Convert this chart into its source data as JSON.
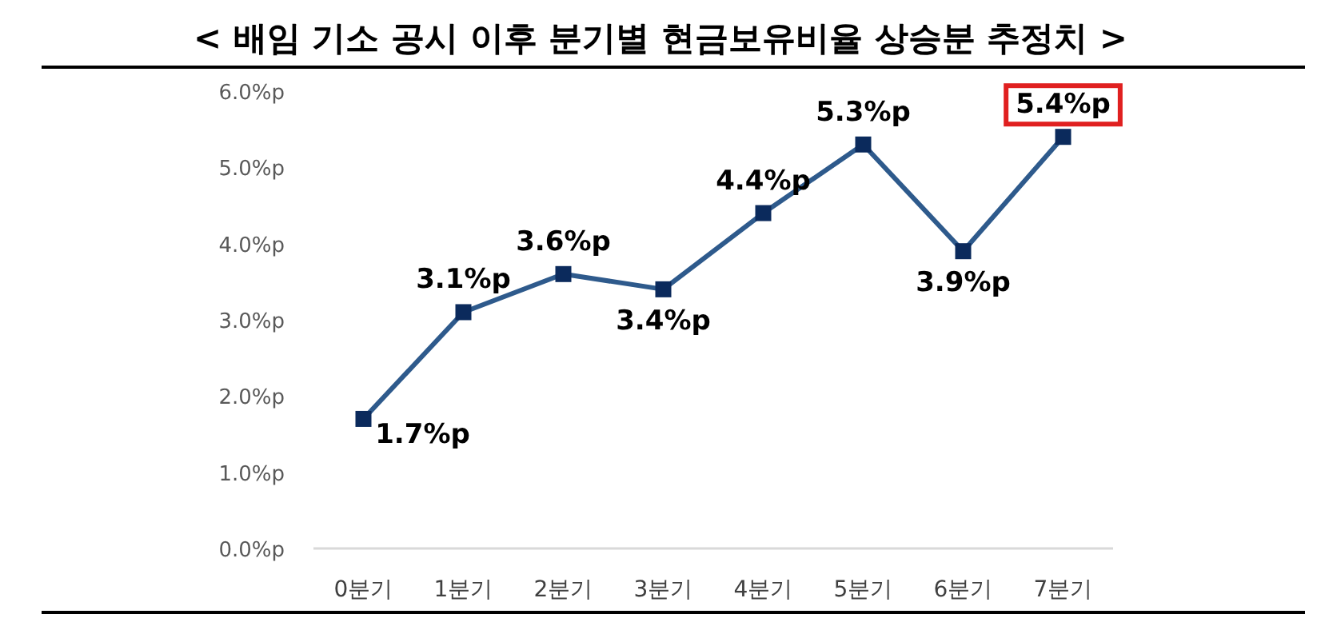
{
  "chart_data": {
    "type": "line",
    "title": "< 배임 기소 공시 이후 분기별 현금보유비율 상승분 추정치  >",
    "categories": [
      "0분기",
      "1분기",
      "2분기",
      "3분기",
      "4분기",
      "5분기",
      "6분기",
      "7분기"
    ],
    "series": [
      {
        "color": "#2e5a8c",
        "values": [
          1.7,
          3.1,
          3.6,
          3.4,
          4.4,
          5.3,
          3.9,
          5.4
        ],
        "value_labels": [
          "1.7%p",
          "3.1%p",
          "3.6%p",
          "3.4%p",
          "4.4%p",
          "5.3%p",
          "3.9%p",
          "5.4%p"
        ]
      }
    ],
    "ylim": [
      0,
      6
    ],
    "yticks": [
      {
        "value": 0,
        "label": "0.0%p"
      },
      {
        "value": 1,
        "label": "1.0%p"
      },
      {
        "value": 2,
        "label": "2.0%p"
      },
      {
        "value": 3,
        "label": "3.0%p"
      },
      {
        "value": 4,
        "label": "4.0%p"
      },
      {
        "value": 5,
        "label": "5.0%p"
      },
      {
        "value": 6,
        "label": "6.0%p"
      }
    ],
    "marker": "square",
    "line_style": "solid",
    "grid": false
  }
}
